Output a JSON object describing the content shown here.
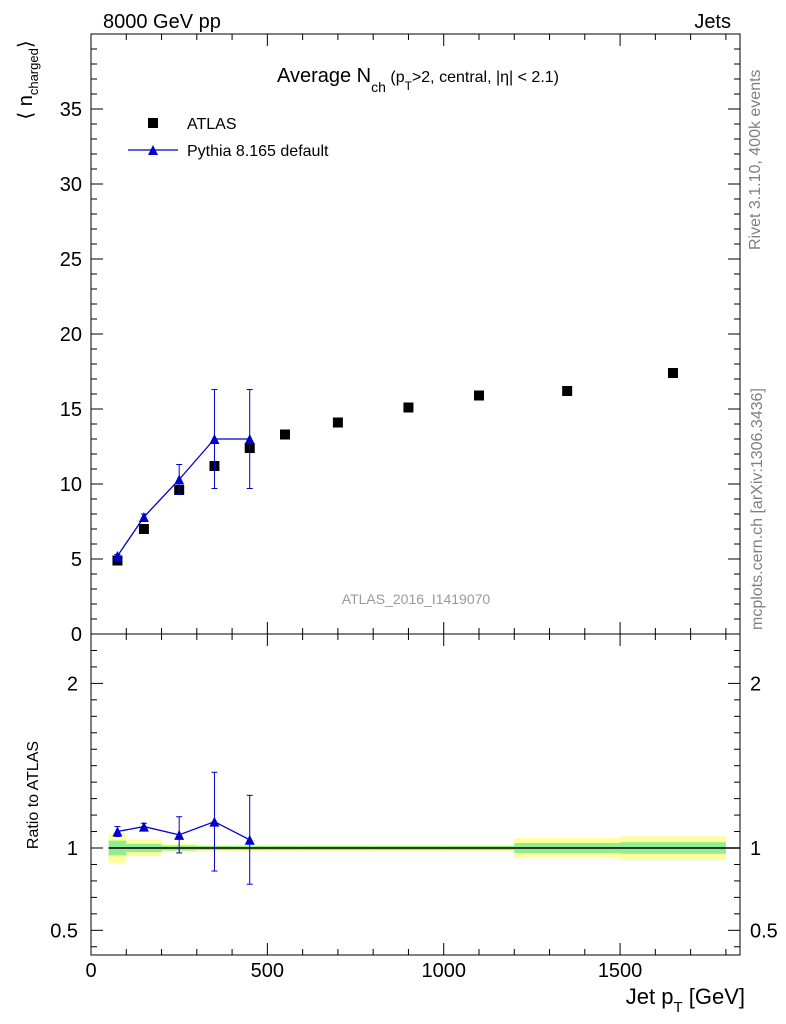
{
  "header": {
    "energy_label": "8000 GeV pp",
    "category_label": "Jets"
  },
  "side_labels": {
    "rivet": "Rivet 3.1.10,  400k events",
    "source": "mcplots.cern.ch [arXiv:1306.3436]"
  },
  "watermark": "ATLAS_2016_I1419070",
  "colors": {
    "atlas": "#000000",
    "pythia": "#0000cc",
    "band_inner": "#90ee90",
    "band_outer": "#ffff99"
  },
  "chart_data": [
    {
      "type": "scatter",
      "panel": "main",
      "title_parts": {
        "main": "Average N",
        "sub": "ch",
        "rest_a": " (p",
        "sub2": "T",
        "rest_b": ">2, central, |η| < 2.1)"
      },
      "ylabel_parts": {
        "open": "⟨ n",
        "sub": "charged",
        "close": "⟩"
      },
      "xlim": [
        0,
        1840
      ],
      "ylim": [
        0,
        40
      ],
      "yticks": [
        0,
        5,
        10,
        15,
        20,
        25,
        30,
        35
      ],
      "ytick_labels": [
        "0",
        "5",
        "10",
        "15",
        "20",
        "25",
        "30",
        "35"
      ],
      "legend": {
        "placement": "top-left",
        "atlas": "ATLAS",
        "pythia": "Pythia 8.165 default"
      },
      "series": [
        {
          "name": "ATLAS",
          "marker": "square",
          "x": [
            75,
            150,
            250,
            350,
            450,
            550,
            700,
            900,
            1100,
            1350,
            1650
          ],
          "y": [
            4.9,
            7.0,
            9.6,
            11.2,
            12.4,
            13.3,
            14.1,
            15.1,
            15.9,
            16.2,
            17.4
          ],
          "yerr": [
            0.1,
            0.1,
            0.15,
            0.15,
            0.15,
            0.15,
            0.15,
            0.2,
            0.2,
            0.2,
            0.3
          ]
        },
        {
          "name": "Pythia 8.165 default",
          "marker": "triangle",
          "x": [
            75,
            150,
            250,
            350,
            450
          ],
          "y": [
            5.2,
            7.8,
            10.3,
            13.0,
            13.0
          ],
          "yerr": [
            0.1,
            0.2,
            1.0,
            3.3,
            3.3
          ]
        }
      ]
    },
    {
      "type": "scatter",
      "panel": "ratio",
      "ylabel": "Ratio to ATLAS",
      "xlabel_parts": {
        "main": "Jet p",
        "sub": "T",
        "rest": " [GeV]"
      },
      "xlim": [
        0,
        1840
      ],
      "ylim": [
        0.35,
        2.3
      ],
      "yticks": [
        0.5,
        1,
        2
      ],
      "ytick_labels": [
        "0.5",
        "1",
        "2"
      ],
      "xticks": [
        0,
        500,
        1000,
        1500
      ],
      "xtick_labels": [
        "0",
        "500",
        "1000",
        "1500"
      ],
      "bands": {
        "edges": [
          50,
          100,
          200,
          300,
          400,
          500,
          600,
          800,
          1000,
          1200,
          1500,
          1800
        ],
        "inner": [
          0.045,
          0.025,
          0.015,
          0.012,
          0.012,
          0.012,
          0.012,
          0.012,
          0.012,
          0.03,
          0.035
        ],
        "outer": [
          0.09,
          0.05,
          0.025,
          0.02,
          0.02,
          0.02,
          0.02,
          0.02,
          0.02,
          0.06,
          0.07
        ]
      },
      "series": [
        {
          "name": "Pythia 8.165 default",
          "x": [
            75,
            150,
            250,
            350,
            450
          ],
          "y": [
            1.1,
            1.13,
            1.08,
            1.16,
            1.05
          ],
          "yerr": [
            0.03,
            0.02,
            0.11,
            0.3,
            0.27
          ]
        }
      ]
    }
  ]
}
